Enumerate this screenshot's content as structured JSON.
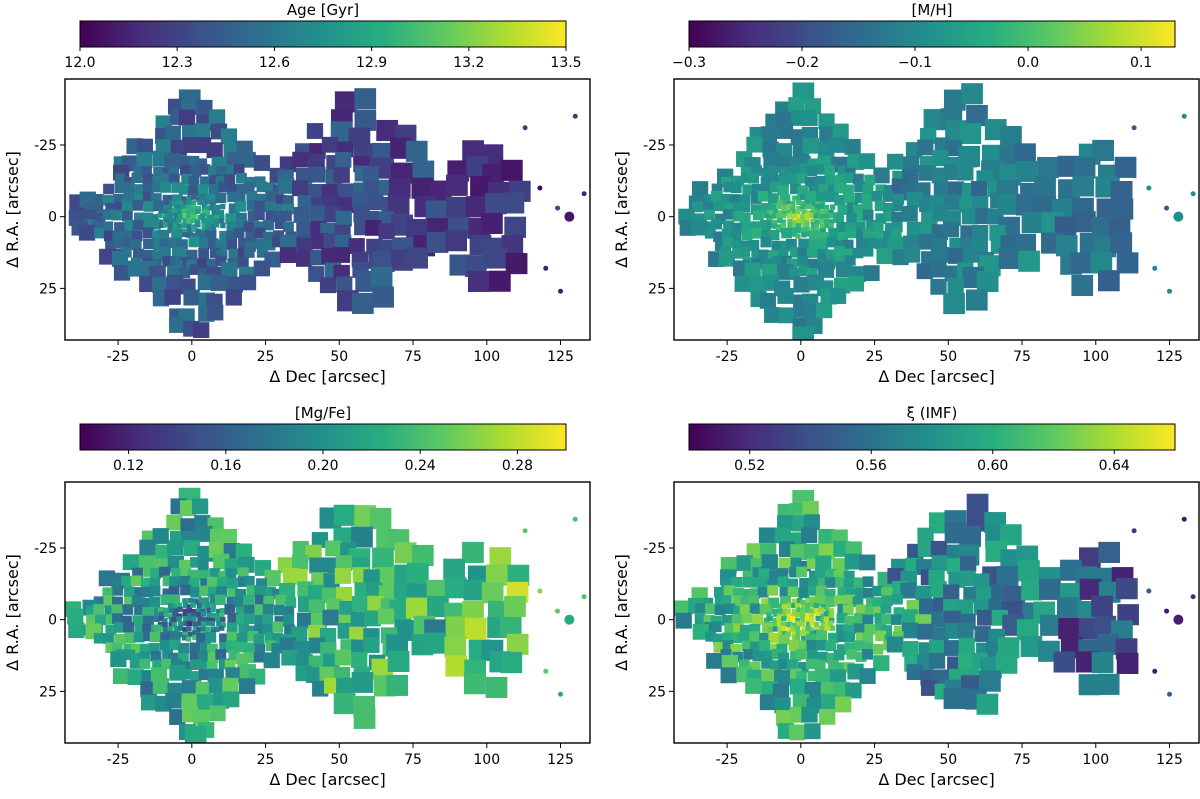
{
  "chart_data": [
    {
      "type": "heatmap",
      "colorbar_label": "Age [Gyr]",
      "colorbar_ticks": [
        "12.0",
        "12.3",
        "12.6",
        "12.9",
        "13.2",
        "13.5"
      ],
      "colorbar_range": [
        12.0,
        13.5
      ],
      "xlabel": "Δ Dec [arcsec]",
      "ylabel": "Δ R.A. [arcsec]",
      "xticks": [
        "-25",
        "0",
        "25",
        "50",
        "75",
        "100",
        "125"
      ],
      "yticks": [
        "-25",
        "0",
        "25"
      ],
      "xlim": [
        -43,
        135
      ],
      "ylim": [
        43,
        -48
      ],
      "base_level": 0.3,
      "center_level": 0.75,
      "outer_level": 0.1,
      "noise": 0.25,
      "colormap": "viridis"
    },
    {
      "type": "heatmap",
      "colorbar_label": "[M/H]",
      "colorbar_ticks": [
        "−0.3",
        "−0.2",
        "−0.1",
        "0.0",
        "0.1"
      ],
      "colorbar_range": [
        -0.3,
        0.13
      ],
      "xlabel": "Δ Dec [arcsec]",
      "ylabel": "Δ R.A. [arcsec]",
      "xticks": [
        "-25",
        "0",
        "25",
        "50",
        "75",
        "100",
        "125"
      ],
      "yticks": [
        "-25",
        "0",
        "25"
      ],
      "xlim": [
        -43,
        135
      ],
      "ylim": [
        43,
        -48
      ],
      "base_level": 0.48,
      "center_level": 0.9,
      "outer_level": 0.35,
      "noise": 0.2,
      "colormap": "viridis"
    },
    {
      "type": "heatmap",
      "colorbar_label": "[Mg/Fe]",
      "colorbar_ticks": [
        "0.12",
        "0.16",
        "0.20",
        "0.24",
        "0.28"
      ],
      "colorbar_range": [
        0.1,
        0.3
      ],
      "xlabel": "Δ Dec [arcsec]",
      "ylabel": "Δ R.A. [arcsec]",
      "xticks": [
        "-25",
        "0",
        "25",
        "50",
        "75",
        "100",
        "125"
      ],
      "yticks": [
        "-25",
        "0",
        "25"
      ],
      "xlim": [
        -43,
        135
      ],
      "ylim": [
        43,
        -48
      ],
      "base_level": 0.55,
      "center_level": 0.3,
      "outer_level": 0.75,
      "noise": 0.45,
      "colormap": "viridis"
    },
    {
      "type": "heatmap",
      "colorbar_label": "ξ (IMF)",
      "colorbar_ticks": [
        "0.52",
        "0.56",
        "0.60",
        "0.64"
      ],
      "colorbar_range": [
        0.5,
        0.66
      ],
      "xlabel": "Δ Dec [arcsec]",
      "ylabel": "Δ R.A. [arcsec]",
      "xticks": [
        "-25",
        "0",
        "25",
        "50",
        "75",
        "100",
        "125"
      ],
      "yticks": [
        "-25",
        "0",
        "25"
      ],
      "xlim": [
        -43,
        135
      ],
      "ylim": [
        43,
        -48
      ],
      "base_level": 0.6,
      "center_level": 0.9,
      "outer_level": 0.2,
      "noise": 0.4,
      "colormap": "viridis"
    }
  ]
}
